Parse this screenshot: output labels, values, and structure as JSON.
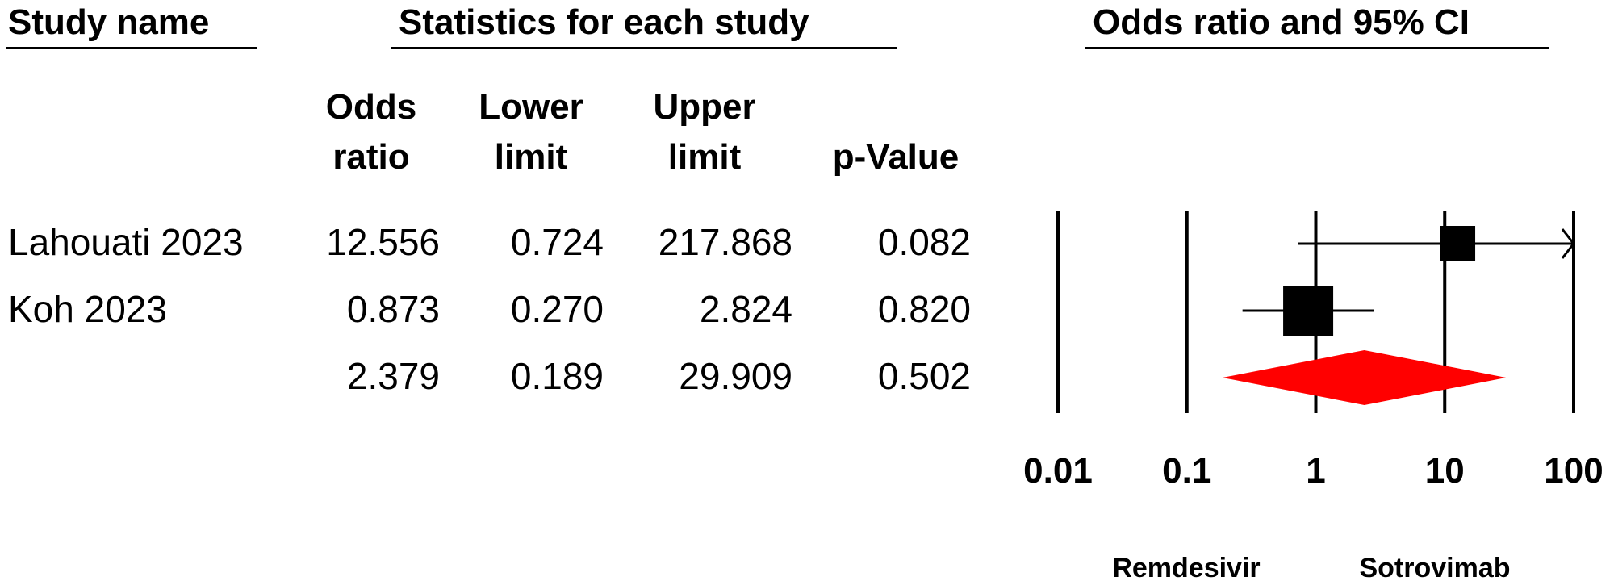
{
  "headers": {
    "study": "Study name",
    "statistics": "Statistics for each study",
    "plot": "Odds ratio and 95% CI"
  },
  "columns": {
    "odds_ratio": [
      "Odds",
      "ratio"
    ],
    "lower": [
      "Lower",
      "limit"
    ],
    "upper": [
      "Upper",
      "limit"
    ],
    "p": "p-Value"
  },
  "rows": [
    {
      "study": "Lahouati 2023",
      "or": "12.556",
      "lower": "0.724",
      "upper": "217.868",
      "p": "0.082"
    },
    {
      "study": "Koh 2023",
      "or": "0.873",
      "lower": "0.270",
      "upper": "2.824",
      "p": "0.820"
    },
    {
      "study": "",
      "or": "2.379",
      "lower": "0.189",
      "upper": "29.909",
      "p": "0.502"
    }
  ],
  "chart_data": {
    "type": "forest",
    "scale": "log",
    "xlim": [
      0.01,
      100
    ],
    "ticks": [
      0.01,
      0.1,
      1,
      10,
      100
    ],
    "tick_labels": [
      "0.01",
      "0.1",
      "1",
      "10",
      "100"
    ],
    "studies": [
      {
        "name": "Lahouati 2023",
        "or": 12.556,
        "lower": 0.724,
        "upper": 217.868,
        "weight": "small"
      },
      {
        "name": "Koh 2023",
        "or": 0.873,
        "lower": 0.27,
        "upper": 2.824,
        "weight": "large"
      }
    ],
    "summary": {
      "or": 2.379,
      "lower": 0.189,
      "upper": 29.909,
      "color": "#ff0000"
    },
    "favors_left": "Remdesivir",
    "favors_right": "Sotrovimab",
    "marker_color": "#000000"
  }
}
